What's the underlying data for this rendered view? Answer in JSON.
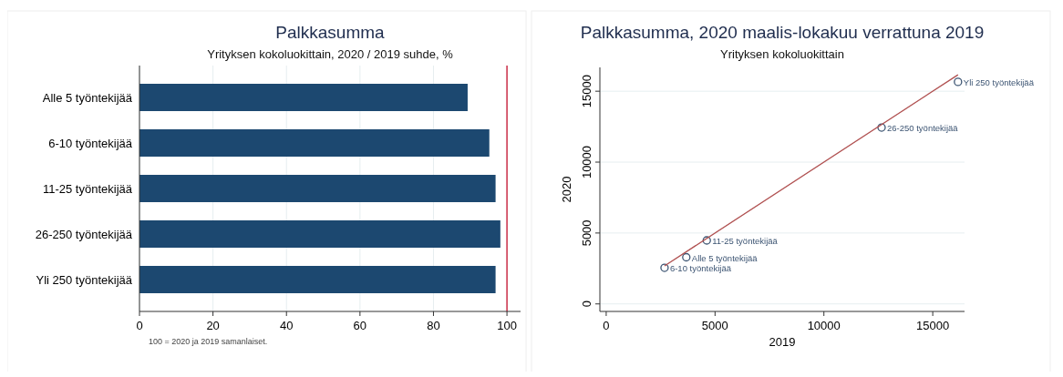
{
  "chart_data": [
    {
      "type": "bar",
      "orientation": "horizontal",
      "title": "Palkkasumma",
      "subtitle": "Yrityksen kokoluokittain, 2020 / 2019 suhde, %",
      "categories": [
        "Alle 5 työntekijää",
        "6-10 työntekijää",
        "11-25 työntekijää",
        "26-250 työntekijää",
        "Yli 250 työntekijää"
      ],
      "values": [
        89.3,
        95.2,
        96.9,
        98.2,
        96.9
      ],
      "color": "#1c4870",
      "xlim": [
        0,
        103.7
      ],
      "xticks": [
        0,
        20,
        40,
        60,
        80,
        100
      ],
      "grid": "x",
      "ref_lines": [
        {
          "axis": "x",
          "value": 100,
          "color": "#c8102e"
        }
      ],
      "annotations": [
        "100 = 2020 ja 2019 samanlaiset."
      ]
    },
    {
      "type": "scatter",
      "title": "Palkkasumma, 2020 maalis-lokakuu verrattuna 2019",
      "subtitle": "Yrityksen kokoluokittain",
      "xlabel": "2019",
      "ylabel": "2020",
      "xlim": [
        -290,
        16460
      ],
      "ylim": [
        -530,
        16680
      ],
      "xticks": [
        0,
        5000,
        10000,
        15000
      ],
      "yticks": [
        0,
        5000,
        10000,
        15000
      ],
      "grid": "y",
      "series": [
        {
          "color": "#3d5573",
          "marker": "circle",
          "x": [
            3680,
            2680,
            4620,
            12650,
            16160
          ],
          "values": [
            3290,
            2550,
            4480,
            12440,
            15660
          ]
        },
        {
          "type": "line",
          "color": "#b05050",
          "x": [
            2680,
            16160
          ],
          "values": [
            2680,
            16160
          ]
        }
      ],
      "annotations": [
        {
          "text": "Alle 5 työntekijää",
          "x": 3680,
          "y": 3290
        },
        {
          "text": "6-10 työntekijää",
          "x": 2680,
          "y": 2550
        },
        {
          "text": "11-25 työntekijää",
          "x": 4620,
          "y": 4480
        },
        {
          "text": "26-250 työntekijää",
          "x": 12650,
          "y": 12440
        },
        {
          "text": "Yli 250 työntekijää",
          "x": 16160,
          "y": 15660
        }
      ]
    }
  ]
}
